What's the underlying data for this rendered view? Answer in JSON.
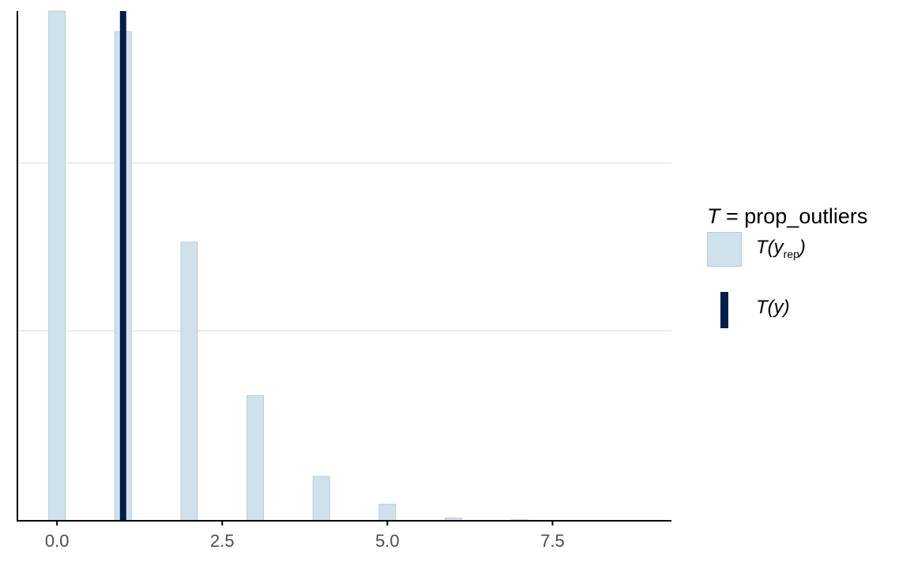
{
  "chart_data": {
    "type": "bar",
    "x": [
      0,
      1,
      2,
      3,
      4,
      5,
      6,
      7
    ],
    "values": [
      1640,
      1545,
      880,
      395,
      140,
      52,
      9,
      3
    ],
    "xlim": [
      -0.6,
      9.3
    ],
    "ylim": [
      0,
      1610
    ],
    "xticks": [
      0.0,
      2.5,
      5.0,
      7.5
    ],
    "xtick_labels": [
      "0.0",
      "2.5",
      "5.0",
      "7.5"
    ],
    "y_gridlines": [
      600,
      1130
    ],
    "observed_value": 1.0,
    "grid": "horizontal",
    "legend_placement": "right",
    "legend": {
      "title": "T = prop_outliers",
      "items": [
        {
          "label": "T(yrep)",
          "kind": "bar"
        },
        {
          "label": "T(y)",
          "kind": "line"
        }
      ]
    },
    "colors": {
      "bar_fill": "#d1e1ec",
      "bar_stroke": "#b3cde0",
      "observed_line": "#011f4b",
      "grid": "#ebebeb",
      "axis": "#000000",
      "tick_label": "#4d4d4d"
    }
  }
}
